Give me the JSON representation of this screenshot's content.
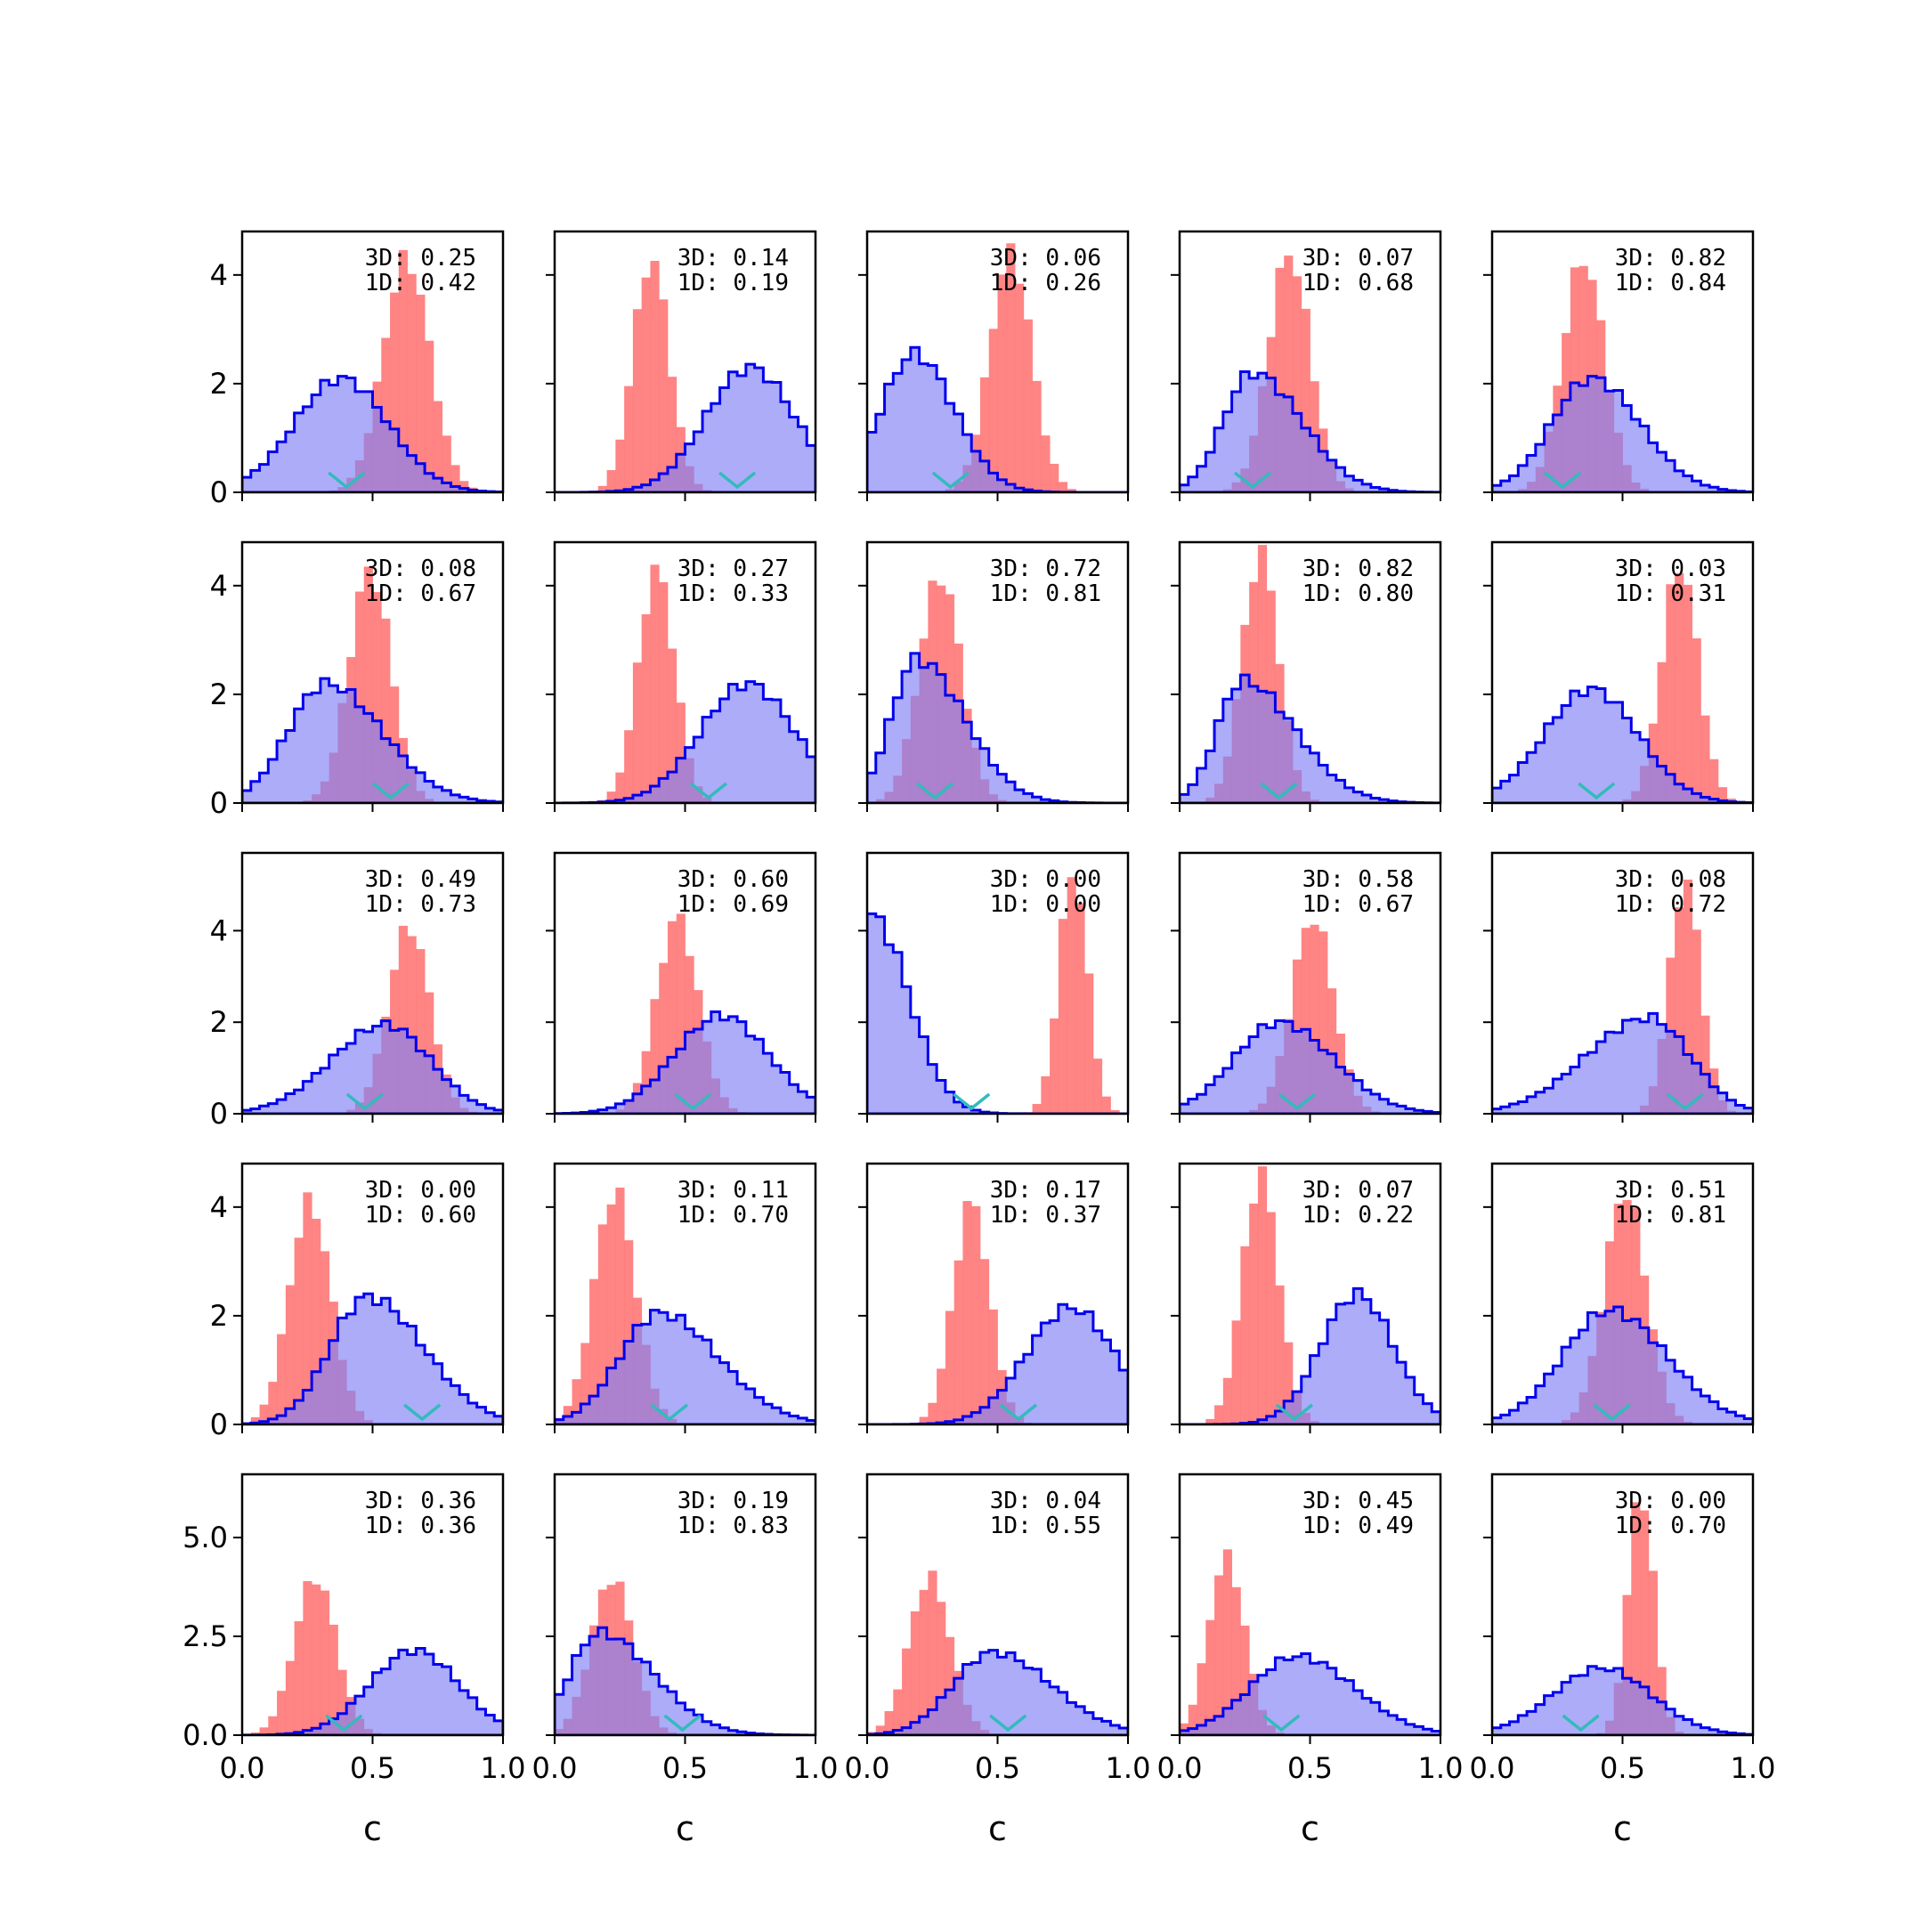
{
  "figure": {
    "type": "histogram-grid",
    "rows": 5,
    "cols": 5,
    "xlabel": "c"
  },
  "colors": {
    "blue_series": "#0000ee",
    "blue_fill": "#7f7ff5",
    "red_series": "#ff7777",
    "marker": "#33bbbb"
  },
  "chart_data": {
    "type": "histogram",
    "bins_x": [
      0,
      1
    ],
    "xlim": [
      0.0,
      1.0
    ],
    "xticks": [
      "0.0",
      "0.5",
      "1.0"
    ],
    "row_ylim": [
      [
        0,
        4.8
      ],
      [
        0,
        4.8
      ],
      [
        0,
        5.7
      ],
      [
        0,
        4.8
      ],
      [
        0,
        6.6
      ]
    ],
    "row_yticks": [
      [
        "0",
        "2",
        "4"
      ],
      [
        "0",
        "2",
        "4"
      ],
      [
        "0",
        "2",
        "4"
      ],
      [
        "0",
        "2",
        "4"
      ],
      [
        "0.0",
        "2.5",
        "5.0"
      ]
    ],
    "row_ytick_values": [
      [
        0,
        2,
        4
      ],
      [
        0,
        2,
        4
      ],
      [
        0,
        2,
        4
      ],
      [
        0,
        2,
        4
      ],
      [
        0,
        2.5,
        5.0
      ]
    ],
    "panels": [
      {
        "annot_3d": "3D: 0.25",
        "annot_1d": "1D: 0.42",
        "blue": {
          "mu": 0.38,
          "sd": 0.18,
          "peak": 2.1,
          "skew": 0
        },
        "red": {
          "mu": 0.63,
          "sd": 0.09,
          "peak": 4.3
        },
        "marker": 0.4
      },
      {
        "annot_3d": "3D: 0.14",
        "annot_1d": "1D: 0.19",
        "blue": {
          "mu": 0.75,
          "sd": 0.17,
          "peak": 2.3,
          "skew": 0
        },
        "red": {
          "mu": 0.37,
          "sd": 0.07,
          "peak": 4.3
        },
        "marker": 0.7
      },
      {
        "annot_3d": "3D: 0.06",
        "annot_1d": "1D: 0.26",
        "blue": {
          "mu": 0.18,
          "sd": 0.14,
          "peak": 2.55,
          "skew": 0.1
        },
        "red": {
          "mu": 0.55,
          "sd": 0.08,
          "peak": 4.4
        },
        "marker": 0.32
      },
      {
        "annot_3d": "3D: 0.07",
        "annot_1d": "1D: 0.68",
        "blue": {
          "mu": 0.28,
          "sd": 0.15,
          "peak": 2.2,
          "skew": 0.25
        },
        "red": {
          "mu": 0.42,
          "sd": 0.08,
          "peak": 4.4
        },
        "marker": 0.28
      },
      {
        "annot_3d": "3D: 0.82",
        "annot_1d": "1D: 0.84",
        "blue": {
          "mu": 0.38,
          "sd": 0.17,
          "peak": 2.1,
          "skew": 0.1
        },
        "red": {
          "mu": 0.35,
          "sd": 0.08,
          "peak": 4.3
        },
        "marker": 0.27
      },
      {
        "annot_3d": "3D: 0.08",
        "annot_1d": "1D: 0.67",
        "blue": {
          "mu": 0.32,
          "sd": 0.18,
          "peak": 2.2,
          "skew": 0.2
        },
        "red": {
          "mu": 0.49,
          "sd": 0.08,
          "peak": 4.3
        },
        "marker": 0.57
      },
      {
        "annot_3d": "3D: 0.27",
        "annot_1d": "1D: 0.33",
        "blue": {
          "mu": 0.74,
          "sd": 0.18,
          "peak": 2.2,
          "skew": 0
        },
        "red": {
          "mu": 0.39,
          "sd": 0.07,
          "peak": 4.3
        },
        "marker": 0.59
      },
      {
        "annot_3d": "3D: 0.72",
        "annot_1d": "1D: 0.81",
        "blue": {
          "mu": 0.19,
          "sd": 0.14,
          "peak": 2.65,
          "skew": 0.3
        },
        "red": {
          "mu": 0.28,
          "sd": 0.08,
          "peak": 4.2
        },
        "marker": 0.26
      },
      {
        "annot_3d": "3D: 0.82",
        "annot_1d": "1D: 0.80",
        "blue": {
          "mu": 0.24,
          "sd": 0.15,
          "peak": 2.25,
          "skew": 0.35
        },
        "red": {
          "mu": 0.31,
          "sd": 0.07,
          "peak": 4.6
        },
        "marker": 0.38
      },
      {
        "annot_3d": "3D: 0.03",
        "annot_1d": "1D: 0.31",
        "blue": {
          "mu": 0.38,
          "sd": 0.18,
          "peak": 2.1,
          "skew": 0
        },
        "red": {
          "mu": 0.72,
          "sd": 0.07,
          "peak": 4.4
        },
        "marker": 0.4
      },
      {
        "annot_3d": "3D: 0.49",
        "annot_1d": "1D: 0.73",
        "blue": {
          "mu": 0.55,
          "sd": 0.19,
          "peak": 1.95,
          "skew": -0.1
        },
        "red": {
          "mu": 0.64,
          "sd": 0.08,
          "peak": 4.1
        },
        "marker": 0.47
      },
      {
        "annot_3d": "3D: 0.60",
        "annot_1d": "1D: 0.69",
        "blue": {
          "mu": 0.64,
          "sd": 0.18,
          "peak": 2.15,
          "skew": 0
        },
        "red": {
          "mu": 0.47,
          "sd": 0.08,
          "peak": 4.3
        },
        "marker": 0.53
      },
      {
        "annot_3d": "3D: 0.00",
        "annot_1d": "1D: 0.00",
        "blue": {
          "mu": 0.02,
          "sd": 0.14,
          "peak": 4.3,
          "skew": 0
        },
        "red": {
          "mu": 0.79,
          "sd": 0.055,
          "peak": 5.3
        },
        "marker": 0.4
      },
      {
        "annot_3d": "3D: 0.58",
        "annot_1d": "1D: 0.67",
        "blue": {
          "mu": 0.38,
          "sd": 0.19,
          "peak": 2.0,
          "skew": 0.1
        },
        "red": {
          "mu": 0.51,
          "sd": 0.08,
          "peak": 4.3
        },
        "marker": 0.45
      },
      {
        "annot_3d": "3D: 0.08",
        "annot_1d": "1D: 0.72",
        "blue": {
          "mu": 0.6,
          "sd": 0.2,
          "peak": 2.1,
          "skew": -0.2
        },
        "red": {
          "mu": 0.74,
          "sd": 0.06,
          "peak": 5.1
        },
        "marker": 0.74
      },
      {
        "annot_3d": "3D: 0.00",
        "annot_1d": "1D: 0.60",
        "blue": {
          "mu": 0.48,
          "sd": 0.18,
          "peak": 2.35,
          "skew": 0.2
        },
        "red": {
          "mu": 0.26,
          "sd": 0.08,
          "peak": 4.1
        },
        "marker": 0.69
      },
      {
        "annot_3d": "3D: 0.11",
        "annot_1d": "1D: 0.70",
        "blue": {
          "mu": 0.4,
          "sd": 0.19,
          "peak": 2.05,
          "skew": 0.2
        },
        "red": {
          "mu": 0.23,
          "sd": 0.08,
          "peak": 4.3
        },
        "marker": 0.44
      },
      {
        "annot_3d": "3D: 0.17",
        "annot_1d": "1D: 0.37",
        "blue": {
          "mu": 0.78,
          "sd": 0.17,
          "peak": 2.15,
          "skew": 0
        },
        "red": {
          "mu": 0.4,
          "sd": 0.07,
          "peak": 4.1
        },
        "marker": 0.58
      },
      {
        "annot_3d": "3D: 0.07",
        "annot_1d": "1D: 0.22",
        "blue": {
          "mu": 0.68,
          "sd": 0.14,
          "peak": 2.4,
          "skew": 0
        },
        "red": {
          "mu": 0.31,
          "sd": 0.07,
          "peak": 4.6
        },
        "marker": 0.44
      },
      {
        "annot_3d": "3D: 0.51",
        "annot_1d": "1D: 0.81",
        "blue": {
          "mu": 0.45,
          "sd": 0.2,
          "peak": 2.1,
          "skew": 0.1
        },
        "red": {
          "mu": 0.51,
          "sd": 0.08,
          "peak": 4.3
        },
        "marker": 0.46
      },
      {
        "annot_3d": "3D: 0.36",
        "annot_1d": "1D: 0.36",
        "blue": {
          "mu": 0.66,
          "sd": 0.17,
          "peak": 2.15,
          "skew": 0
        },
        "red": {
          "mu": 0.28,
          "sd": 0.08,
          "peak": 4.0
        },
        "marker": 0.39
      },
      {
        "annot_3d": "3D: 0.19",
        "annot_1d": "1D: 0.83",
        "blue": {
          "mu": 0.17,
          "sd": 0.16,
          "peak": 2.6,
          "skew": 0.3
        },
        "red": {
          "mu": 0.22,
          "sd": 0.08,
          "peak": 4.0
        },
        "marker": 0.49
      },
      {
        "annot_3d": "3D: 0.04",
        "annot_1d": "1D: 0.55",
        "blue": {
          "mu": 0.48,
          "sd": 0.19,
          "peak": 2.1,
          "skew": 0.2
        },
        "red": {
          "mu": 0.24,
          "sd": 0.08,
          "peak": 4.0
        },
        "marker": 0.54
      },
      {
        "annot_3d": "3D: 0.45",
        "annot_1d": "1D: 0.49",
        "blue": {
          "mu": 0.45,
          "sd": 0.2,
          "peak": 2.0,
          "skew": 0.1
        },
        "red": {
          "mu": 0.18,
          "sd": 0.07,
          "peak": 4.5
        },
        "marker": 0.39
      },
      {
        "annot_3d": "3D: 0.00",
        "annot_1d": "1D: 0.70",
        "blue": {
          "mu": 0.42,
          "sd": 0.19,
          "peak": 1.7,
          "skew": 0
        },
        "red": {
          "mu": 0.57,
          "sd": 0.05,
          "peak": 6.2
        },
        "marker": 0.34
      }
    ]
  }
}
